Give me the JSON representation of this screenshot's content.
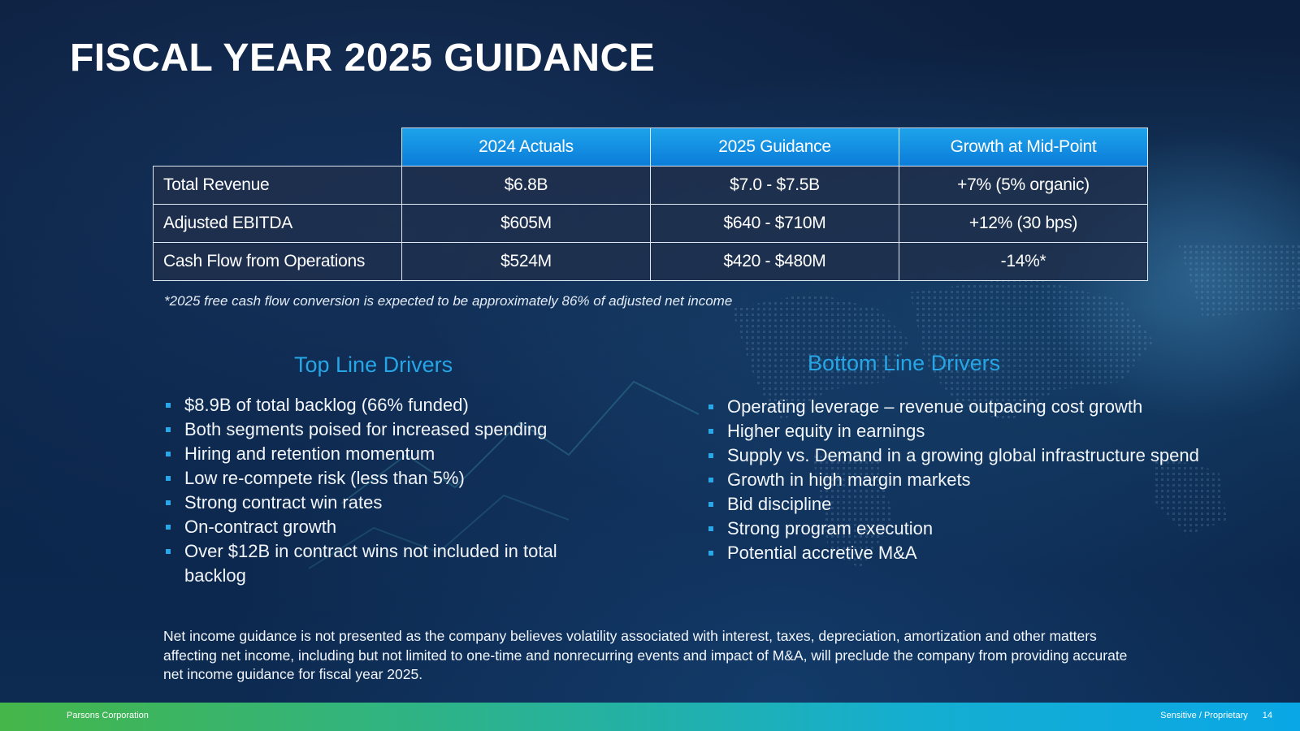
{
  "slide": {
    "title": "FISCAL YEAR 2025 GUIDANCE",
    "page_number": "14"
  },
  "table": {
    "headers": [
      "",
      "2024 Actuals",
      "2025 Guidance",
      "Growth at Mid-Point"
    ],
    "rows": [
      [
        "Total Revenue",
        "$6.8B",
        "$7.0 - $7.5B",
        "+7% (5% organic)"
      ],
      [
        "Adjusted EBITDA",
        "$605M",
        "$640 - $710M",
        "+12% (30 bps)"
      ],
      [
        "Cash Flow from Operations",
        "$524M",
        "$420 - $480M",
        "-14%*"
      ]
    ],
    "footnote": "*2025 free cash flow conversion is expected to be approximately 86% of adjusted net income"
  },
  "top_line": {
    "heading": "Top Line Drivers",
    "items": [
      "$8.9B of total backlog (66% funded)",
      "Both segments poised for increased spending",
      "Hiring and retention momentum",
      "Low re-compete risk (less than 5%)",
      "Strong contract win rates",
      "On-contract growth",
      "Over $12B in contract wins not included in total backlog"
    ]
  },
  "bottom_line": {
    "heading": "Bottom Line Drivers",
    "items": [
      "Operating leverage – revenue outpacing cost growth",
      "Higher equity in earnings",
      "Supply vs. Demand in a growing global infrastructure spend",
      "Growth in high margin markets",
      "Bid discipline",
      "Strong program execution",
      "Potential accretive M&A"
    ]
  },
  "disclaimer": "Net income guidance is not presented as the company believes volatility associated with interest, taxes, depreciation, amortization and other matters affecting net income, including but not limited to one-time and nonrecurring events and impact of M&A, will preclude the company from providing accurate net income guidance for fiscal year 2025.",
  "footer": {
    "company": "Parsons Corporation",
    "classification": "Sensitive / Proprietary"
  },
  "colors": {
    "accent_blue": "#26a6e6",
    "header_blue": "#0a7bd9",
    "footer_green": "#45b649",
    "footer_blue": "#0aa7e6"
  }
}
